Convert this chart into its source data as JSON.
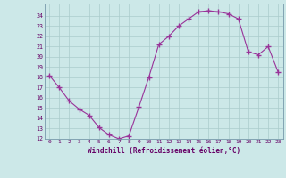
{
  "x": [
    0,
    1,
    2,
    3,
    4,
    5,
    6,
    7,
    8,
    9,
    10,
    11,
    12,
    13,
    14,
    15,
    16,
    17,
    18,
    19,
    20,
    21,
    22,
    23
  ],
  "y": [
    18.2,
    17.0,
    15.7,
    14.9,
    14.3,
    13.1,
    12.4,
    12.0,
    12.3,
    15.1,
    18.0,
    21.2,
    22.0,
    23.0,
    23.7,
    24.4,
    24.5,
    24.4,
    24.2,
    23.7,
    20.5,
    20.2,
    21.0,
    18.5
  ],
  "line_color": "#993399",
  "marker": "+",
  "marker_size": 4,
  "bg_color": "#cce8e8",
  "grid_color": "#aacccc",
  "xlabel": "Windchill (Refroidissement éolien,°C)",
  "xlabel_color": "#660066",
  "tick_color": "#660066",
  "ylim": [
    12,
    25
  ],
  "yticks": [
    12,
    13,
    14,
    15,
    16,
    17,
    18,
    19,
    20,
    21,
    22,
    23,
    24
  ],
  "xlim": [
    -0.5,
    23.5
  ],
  "xticks": [
    0,
    1,
    2,
    3,
    4,
    5,
    6,
    7,
    8,
    9,
    10,
    11,
    12,
    13,
    14,
    15,
    16,
    17,
    18,
    19,
    20,
    21,
    22,
    23
  ]
}
